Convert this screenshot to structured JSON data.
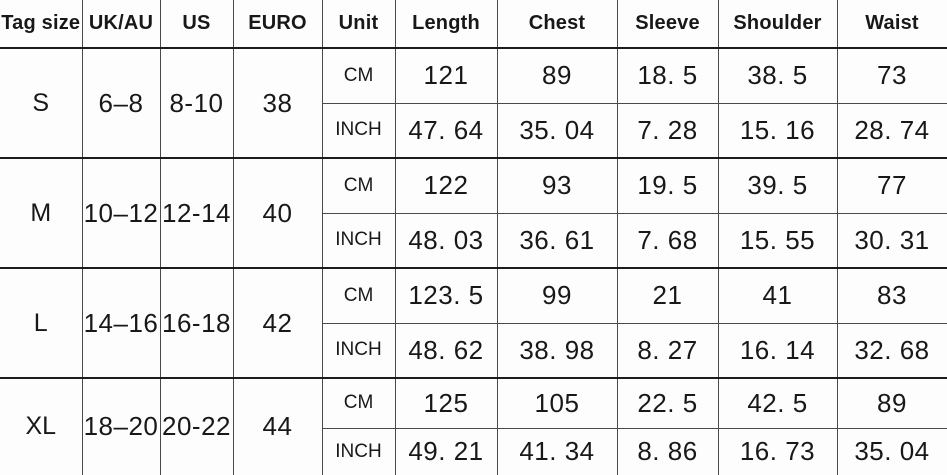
{
  "colors": {
    "background": "#fdfdfd",
    "text": "#181818",
    "grid_line": "#4a4a4a",
    "group_separator": "#1c1c1c"
  },
  "table": {
    "headers": [
      "Tag size",
      "UK/AU",
      "US",
      "EURO",
      "Unit",
      "Length",
      "Chest",
      "Sleeve",
      "Shoulder",
      "Waist"
    ],
    "rows": [
      {
        "tag": "S",
        "uk_au": "6–8",
        "us": "8-10",
        "euro": "38",
        "cm": {
          "unit": "CM",
          "length": "121",
          "chest": "89",
          "sleeve": "18. 5",
          "shoulder": "38. 5",
          "waist": "73"
        },
        "inch": {
          "unit": "INCH",
          "length": "47. 64",
          "chest": "35. 04",
          "sleeve": "7. 28",
          "shoulder": "15. 16",
          "waist": "28. 74"
        }
      },
      {
        "tag": "M",
        "uk_au": "10–12",
        "us": "12-14",
        "euro": "40",
        "cm": {
          "unit": "CM",
          "length": "122",
          "chest": "93",
          "sleeve": "19. 5",
          "shoulder": "39. 5",
          "waist": "77"
        },
        "inch": {
          "unit": "INCH",
          "length": "48. 03",
          "chest": "36. 61",
          "sleeve": "7. 68",
          "shoulder": "15. 55",
          "waist": "30. 31"
        }
      },
      {
        "tag": "L",
        "uk_au": "14–16",
        "us": "16-18",
        "euro": "42",
        "cm": {
          "unit": "CM",
          "length": "123. 5",
          "chest": "99",
          "sleeve": "21",
          "shoulder": "41",
          "waist": "83"
        },
        "inch": {
          "unit": "INCH",
          "length": "48. 62",
          "chest": "38. 98",
          "sleeve": "8. 27",
          "shoulder": "16. 14",
          "waist": "32. 68"
        }
      },
      {
        "tag": "XL",
        "uk_au": "18–20",
        "us": "20-22",
        "euro": "44",
        "cm": {
          "unit": "CM",
          "length": "125",
          "chest": "105",
          "sleeve": "22. 5",
          "shoulder": "42. 5",
          "waist": "89"
        },
        "inch": {
          "unit": "INCH",
          "length": "49. 21",
          "chest": "41. 34",
          "sleeve": "8. 86",
          "shoulder": "16. 73",
          "waist": "35. 04"
        }
      }
    ]
  }
}
